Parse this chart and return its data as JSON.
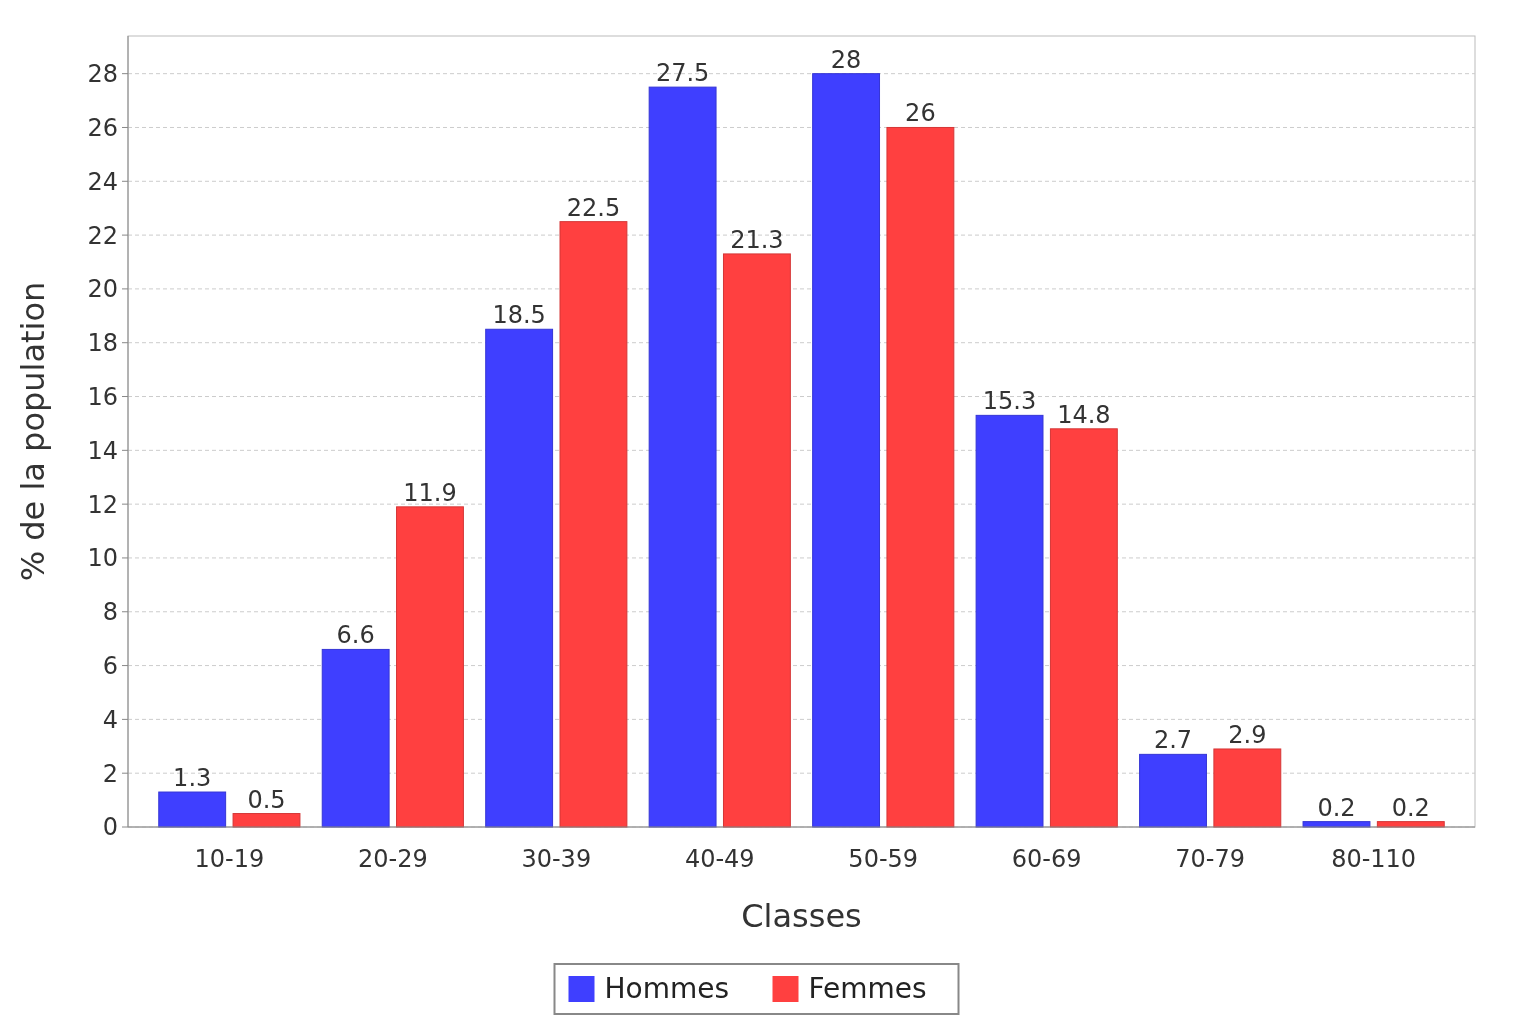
{
  "chart_data": {
    "type": "bar",
    "xlabel": "Classes",
    "ylabel": "% de la population",
    "categories": [
      "10-19",
      "20-29",
      "30-39",
      "40-49",
      "50-59",
      "60-69",
      "70-79",
      "80-110"
    ],
    "series": [
      {
        "name": "Hommes",
        "color": "#3f3fff",
        "values": [
          1.3,
          6.6,
          18.5,
          27.5,
          28,
          15.3,
          2.7,
          0.2
        ]
      },
      {
        "name": "Femmes",
        "color": "#ff4040",
        "values": [
          0.5,
          11.9,
          22.5,
          21.3,
          26,
          14.8,
          2.9,
          0.2
        ]
      }
    ],
    "ylim": [
      0,
      29.4
    ],
    "yticks": [
      0,
      2,
      4,
      6,
      8,
      10,
      12,
      14,
      16,
      18,
      20,
      22,
      24,
      26,
      28
    ],
    "grid": "y",
    "legend": "bottom",
    "data_labels": true
  }
}
